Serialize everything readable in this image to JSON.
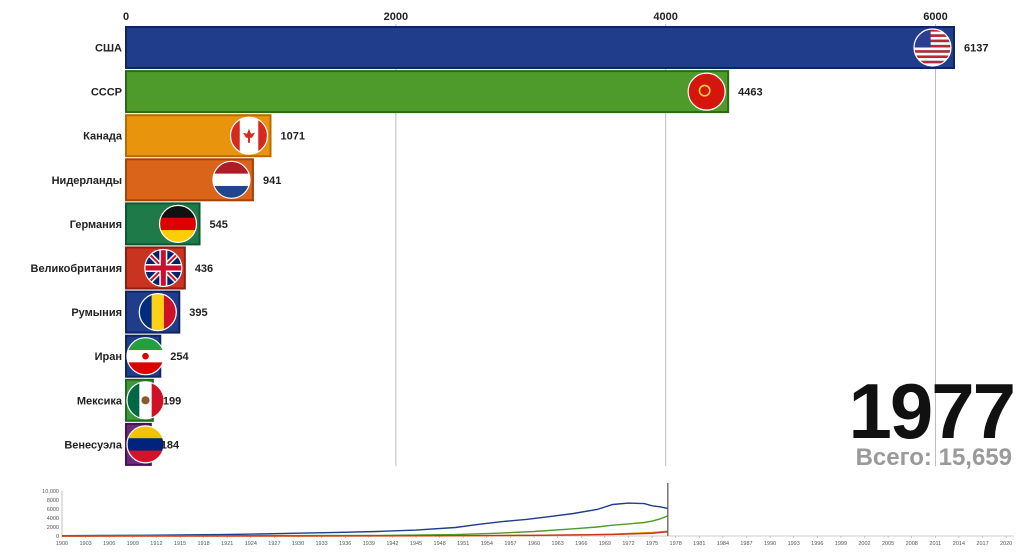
{
  "chart_data": [
    {
      "type": "bar",
      "orientation": "horizontal",
      "categories": [
        "США",
        "СССР",
        "Канада",
        "Нидерланды",
        "Германия",
        "Великобритания",
        "Румыния",
        "Иран",
        "Мексика",
        "Венесуэла"
      ],
      "values": [
        6137,
        4463,
        1071,
        941,
        545,
        436,
        395,
        254,
        199,
        184
      ],
      "value_labels": [
        "6137",
        "4463",
        "1071",
        "941",
        "545",
        "436",
        "395",
        "254",
        "199",
        "184"
      ],
      "bar_colors": [
        "#1f3d8a",
        "#4e9a2a",
        "#e8940c",
        "#d9641a",
        "#1f7a4a",
        "#c93420",
        "#1f3d8a",
        "#1f3d8a",
        "#3a9a3a",
        "#6a2a7a"
      ],
      "bar_borders": [
        "#0f2560",
        "#2e6a12",
        "#b86c00",
        "#a84308",
        "#0c5a30",
        "#8f1c0c",
        "#0f2560",
        "#0f2560",
        "#1e6a1e",
        "#4a1058"
      ],
      "flags": [
        "us-flag-icon",
        "ussr-flag-icon",
        "canada-flag-icon",
        "netherlands-flag-icon",
        "germany-flag-icon",
        "uk-flag-icon",
        "romania-flag-icon",
        "iran-flag-icon",
        "mexico-flag-icon",
        "venezuela-flag-icon"
      ],
      "x_ticks": [
        "0",
        "2000",
        "4000",
        "6000"
      ],
      "x_tick_values": [
        0,
        2000,
        4000,
        6000
      ],
      "xlim": [
        0,
        6137
      ],
      "grid": true
    },
    {
      "type": "line",
      "x_ticks": [
        "1900",
        "1903",
        "1906",
        "1909",
        "1912",
        "1915",
        "1918",
        "1921",
        "1924",
        "1927",
        "1930",
        "1933",
        "1936",
        "1939",
        "1942",
        "1945",
        "1948",
        "1951",
        "1954",
        "1957",
        "1960",
        "1963",
        "1966",
        "1969",
        "1972",
        "1975",
        "1978",
        "1981",
        "1984",
        "1987",
        "1990",
        "1993",
        "1996",
        "1999",
        "2002",
        "2005",
        "2008",
        "2011",
        "2014",
        "2017",
        "2020"
      ],
      "y_ticks": [
        "10,000",
        "8000",
        "6000",
        "4000",
        "2000",
        "0"
      ],
      "y_tick_values": [
        10000,
        8000,
        6000,
        4000,
        2000,
        0
      ],
      "xlim": [
        1900,
        2021
      ],
      "ylim": [
        0,
        10000
      ],
      "current_year": 1977,
      "series": [
        {
          "color": "#1f3d8a",
          "x": [
            1900,
            1905,
            1910,
            1915,
            1920,
            1925,
            1930,
            1935,
            1940,
            1945,
            1950,
            1953,
            1956,
            1959,
            1962,
            1965,
            1968,
            1970,
            1972,
            1974,
            1975,
            1976,
            1977
          ],
          "y": [
            60,
            100,
            160,
            220,
            300,
            450,
            620,
            800,
            1000,
            1300,
            1900,
            2600,
            3200,
            3700,
            4300,
            5000,
            5900,
            7000,
            7300,
            7200,
            6700,
            6500,
            6137
          ]
        },
        {
          "color": "#4e9a2a",
          "x": [
            1900,
            1910,
            1920,
            1930,
            1940,
            1950,
            1955,
            1960,
            1965,
            1968,
            1970,
            1972,
            1974,
            1975,
            1976,
            1977
          ],
          "y": [
            30,
            40,
            50,
            80,
            120,
            300,
            600,
            1000,
            1600,
            2000,
            2400,
            2700,
            3000,
            3300,
            3800,
            4463
          ]
        },
        {
          "color": "#e8940c",
          "x": [
            1900,
            1930,
            1950,
            1960,
            1965,
            1970,
            1975,
            1977
          ],
          "y": [
            0,
            10,
            40,
            100,
            200,
            400,
            800,
            1071
          ]
        },
        {
          "color": "#c93420",
          "x": [
            1900,
            1930,
            1950,
            1960,
            1970,
            1975,
            1977
          ],
          "y": [
            0,
            20,
            60,
            150,
            350,
            600,
            941
          ]
        }
      ]
    }
  ],
  "year_label": "1977",
  "total_label": "Всего: 15,659"
}
